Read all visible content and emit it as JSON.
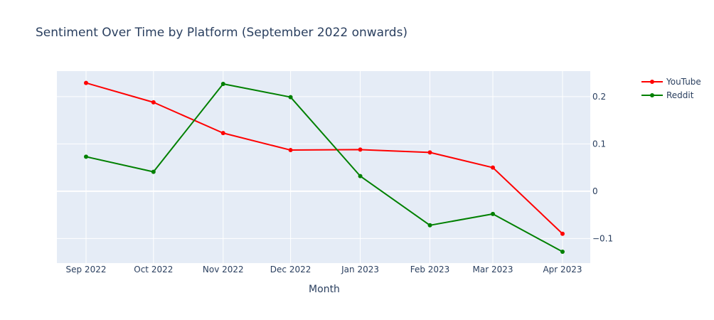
{
  "chart_data": {
    "type": "line",
    "title": "Sentiment Over Time by Platform (September 2022 onwards)",
    "xlabel": "Month",
    "ylabel": "",
    "categories": [
      "Sep 2022",
      "Oct 2022",
      "Nov 2022",
      "Dec 2022",
      "Jan 2023",
      "Feb 2023",
      "Mar 2023",
      "Apr 2023"
    ],
    "x_dates": [
      "2022-09-01",
      "2022-10-01",
      "2022-11-01",
      "2022-12-01",
      "2023-01-01",
      "2023-02-01",
      "2023-03-01",
      "2023-04-01"
    ],
    "ylim": [
      -0.152,
      0.254
    ],
    "yticks": [
      -0.1,
      0,
      0.1,
      0.2
    ],
    "ytick_labels": [
      "−0.1",
      "0",
      "0.1",
      "0.2"
    ],
    "y_axis_side": "right",
    "grid": true,
    "legend_position": "top-right",
    "series": [
      {
        "name": "YouTube",
        "color": "#ff0000",
        "values": [
          0.229,
          0.188,
          0.123,
          0.087,
          0.088,
          0.082,
          0.05,
          -0.09
        ]
      },
      {
        "name": "Reddit",
        "color": "#008000",
        "values": [
          0.073,
          0.041,
          0.227,
          0.199,
          0.032,
          -0.072,
          -0.048,
          -0.128
        ]
      }
    ]
  },
  "style": {
    "plot_background": "#e5ecf6",
    "grid_color": "#ffffff",
    "text_color": "#2a3f5f"
  }
}
